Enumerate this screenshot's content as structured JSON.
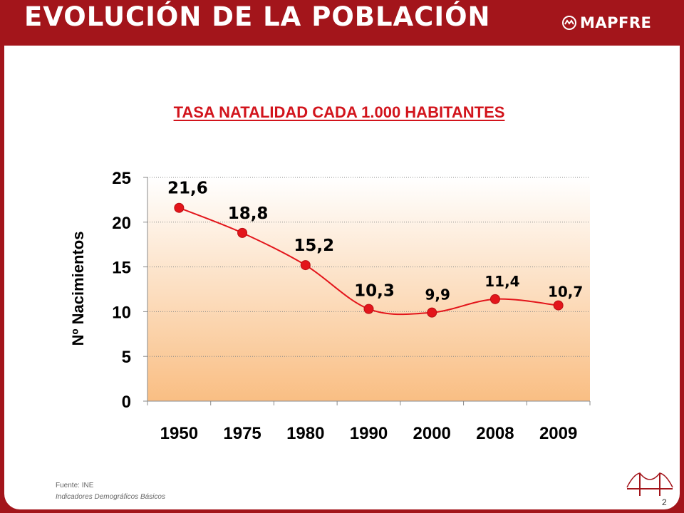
{
  "header": {
    "title": "EVOLUCIÓN DE LA POBLACIÓN",
    "brand": "MAPFRE",
    "brand_icon": "mapfre-logo-icon",
    "bar_color": "#a3151b"
  },
  "chart_data": {
    "type": "line",
    "title": "TASA NATALIDAD CADA 1.000 HABITANTES",
    "ylabel": "Nº Nacimientos",
    "xlabel": "",
    "categories": [
      "1950",
      "1975",
      "1980",
      "1990",
      "2000",
      "2008",
      "2009"
    ],
    "series": [
      {
        "values": [
          21.6,
          18.8,
          15.2,
          10.3,
          9.9,
          11.4,
          10.7
        ],
        "data_labels": [
          "21,6",
          "18,8",
          "15,2",
          "10,3",
          "9,9",
          "11,4",
          "10,7"
        ],
        "color": "#e3151b"
      }
    ],
    "ylim": [
      0,
      25
    ],
    "yticks": [
      0,
      5,
      10,
      15,
      20,
      25
    ],
    "grid": true,
    "legend": "none",
    "plot_background": "gradient white to #f9be83"
  },
  "footer": {
    "source": "Fuente: INE",
    "source_detail": "Indicadores Demográficos Básicos",
    "page_number": "2",
    "corner_icon": "bridge-icon"
  }
}
